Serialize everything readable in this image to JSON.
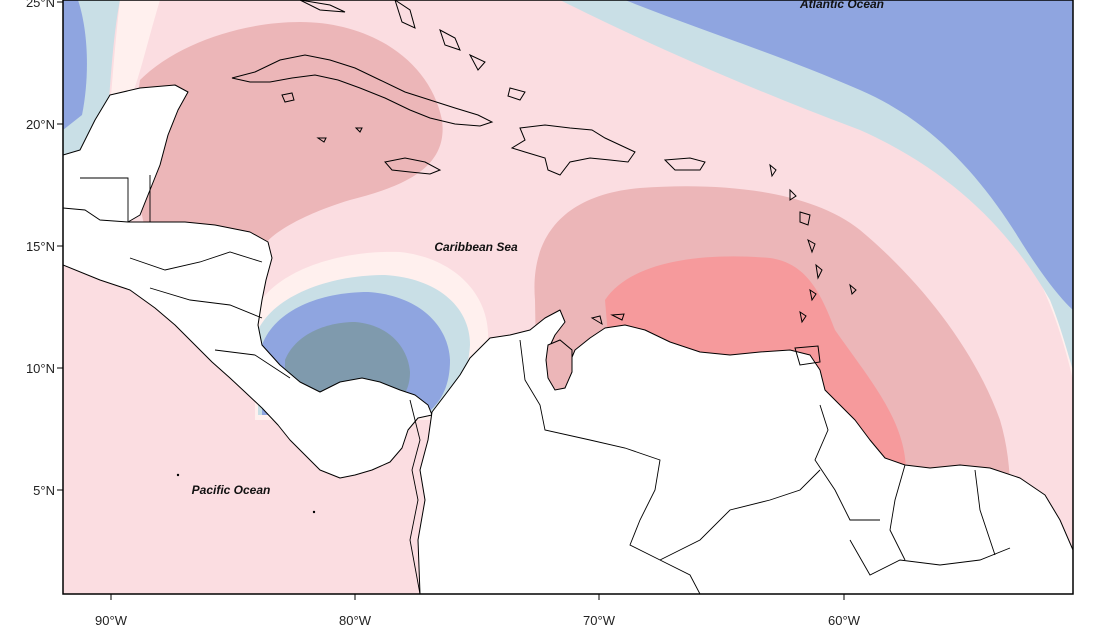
{
  "map": {
    "ocean_labels": {
      "atlantic": "Atlantic Ocean",
      "caribbean": "Caribbean Sea",
      "pacific": "Pacific Ocean"
    },
    "lat_ticks": [
      "25°N",
      "20°N",
      "15°N",
      "10°N",
      "5°N"
    ],
    "lon_ticks": [
      "90°W",
      "80°W",
      "70°W",
      "60°W"
    ],
    "colors": {
      "dark_blue": "#7f9aad",
      "blue": "#8fa5e0",
      "light_blue": "#c9dfe6",
      "cream": "#fff0ee",
      "light_pink": "#fbdde1",
      "pink": "#ecb6b8",
      "red": "#f69a9c",
      "land": "#ffffff"
    }
  }
}
